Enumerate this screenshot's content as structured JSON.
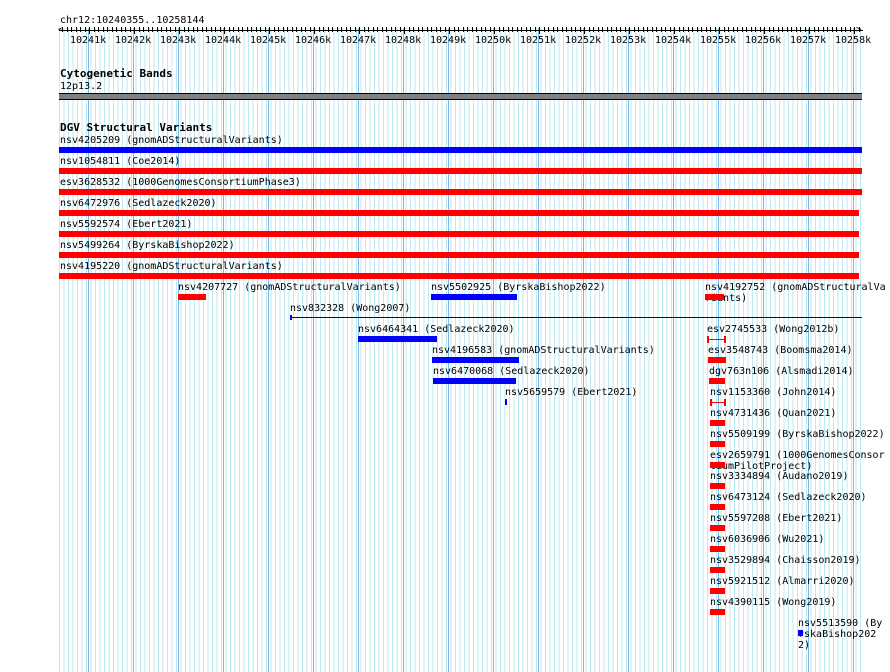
{
  "ruler": {
    "location": "chr12:10240355..10258144",
    "ticks": [
      "10241k",
      "10242k",
      "10243k",
      "10244k",
      "10245k",
      "10246k",
      "10247k",
      "10248k",
      "10249k",
      "10250k",
      "10251k",
      "10252k",
      "10253k",
      "10254k",
      "10255k",
      "10256k",
      "10257k",
      "10258k"
    ]
  },
  "tracks": {
    "cytobands": {
      "title": "Cytogenetic Bands",
      "band": "12p13.2"
    },
    "dgv": {
      "title": "DGV Structural Variants",
      "features": [
        "nsv4205209 (gnomADStructuralVariants)",
        "nsv1054811 (Coe2014)",
        "esv3628532 (1000GenomesConsortiumPhase3)",
        "nsv6472976 (Sedlazeck2020)",
        "nsv5592574 (Ebert2021)",
        "nsv5499264 (ByrskaBishop2022)",
        "nsv4195220 (gnomADStructuralVariants)",
        "nsv4207727 (gnomADStructuralVariants)",
        "nsv5502925 (ByrskaBishop2022)",
        "nsv4192752 (gnomADStructuralVariants)",
        "nsv832328 (Wong2007)",
        "nsv6464341 (Sedlazeck2020)",
        "esv2745533 (Wong2012b)",
        "nsv4196583 (gnomADStructuralVariants)",
        "esv3548743 (Boomsma2014)",
        "nsv6470068 (Sedlazeck2020)",
        "dgv763n106 (Alsmadi2014)",
        "nsv5659579 (Ebert2021)",
        "nsv1153360 (John2014)",
        "nsv4731436 (Quan2021)",
        "nsv5509199 (ByrskaBishop2022)",
        "esv2659791 (1000GenomesConsortiumPilotProject)",
        "nsv3334894 (Audano2019)",
        "nsv6473124 (Sedlazeck2020)",
        "nsv5597208 (Ebert2021)",
        "nsv6036906 (Wu2021)",
        "nsv3529894 (Chaisson2019)",
        "nsv5921512 (Almarri2020)",
        "nsv4390115 (Wong2019)",
        "nsv5513590 (ByrskaBishop2022)"
      ]
    }
  },
  "colors": {
    "loss": "#ff0000",
    "gain": "#0000ff",
    "grid": "#bfeaf2"
  }
}
